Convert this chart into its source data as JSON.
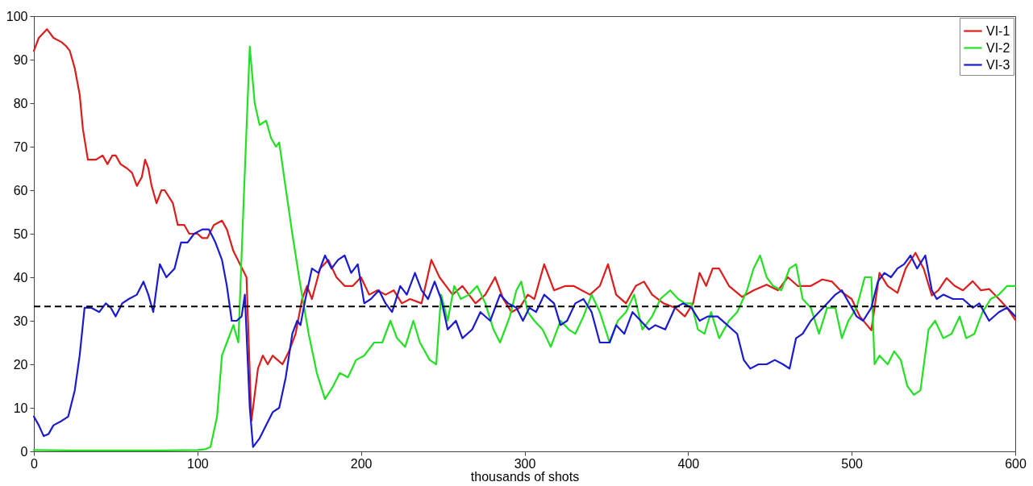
{
  "chart_data": {
    "type": "line",
    "xlabel": "thousands of shots",
    "xlim": [
      0,
      600
    ],
    "xticks": [
      0,
      100,
      200,
      300,
      400,
      500,
      600
    ],
    "ylim": [
      0,
      100
    ],
    "yticks": [
      0,
      10,
      20,
      30,
      40,
      50,
      60,
      70,
      80,
      90,
      100
    ],
    "grid": false,
    "legend": "top right",
    "line_style": "solid",
    "marker": "none",
    "ref_lines": [
      {
        "axis": "y",
        "value": 33.3,
        "color": "#000000",
        "line_style": "dashed"
      }
    ],
    "series": [
      {
        "name": "VI-1",
        "color": "#dd1c1c",
        "x": [
          0,
          3,
          8,
          12,
          17,
          20,
          22,
          25,
          28,
          30,
          33,
          38,
          42,
          45,
          48,
          50,
          53,
          57,
          60,
          63,
          66,
          68,
          70,
          72,
          75,
          78,
          80,
          85,
          88,
          92,
          95,
          100,
          103,
          106,
          110,
          115,
          118,
          122,
          126,
          130,
          133,
          137,
          140,
          143,
          146,
          149,
          152,
          156,
          160,
          164,
          167,
          170,
          175,
          180,
          185,
          190,
          195,
          200,
          205,
          210,
          215,
          220,
          225,
          230,
          237,
          243,
          248,
          252,
          256,
          262,
          266,
          270,
          276,
          282,
          287,
          292,
          297,
          302,
          306,
          312,
          318,
          325,
          330,
          335,
          340,
          346,
          351,
          356,
          362,
          368,
          373,
          378,
          385,
          392,
          398,
          403,
          407,
          411,
          415,
          419,
          425,
          433,
          440,
          448,
          455,
          461,
          467,
          475,
          482,
          488,
          494,
          500,
          505,
          512,
          517,
          522,
          528,
          533,
          539,
          544,
          549,
          553,
          558,
          563,
          568,
          574,
          579,
          584,
          590,
          595,
          600
        ],
        "values": [
          92,
          95,
          97,
          95,
          94,
          93,
          92,
          88,
          82,
          74,
          67,
          67,
          68,
          66,
          68,
          68,
          66,
          65,
          64,
          61,
          63,
          67,
          65,
          61,
          57,
          60,
          60,
          57,
          52,
          52,
          50,
          50,
          49,
          49,
          52,
          53,
          51,
          46,
          43,
          40,
          7,
          19,
          22,
          20,
          22,
          21,
          20,
          23,
          27,
          35,
          38,
          35,
          42,
          44,
          40,
          38,
          38,
          40,
          36,
          37,
          36,
          37,
          34,
          35,
          34,
          44,
          40,
          38,
          36,
          38,
          36,
          34,
          36,
          40,
          35,
          32,
          33,
          36,
          35,
          43,
          37,
          38,
          38,
          37,
          36,
          38,
          43,
          36,
          34,
          38,
          39,
          36,
          34,
          33,
          31,
          34,
          41,
          38,
          42,
          42,
          38,
          35.5,
          37,
          38.3,
          37,
          40,
          38,
          38,
          39.5,
          39,
          36.6,
          35,
          31,
          27.8,
          41,
          38,
          36.4,
          42,
          45.6,
          42,
          35.8,
          37,
          39.8,
          38,
          37,
          39.1,
          37,
          37.3,
          35,
          33,
          30.2
        ]
      },
      {
        "name": "VI-2",
        "color": "#22e022",
        "x": [
          0,
          20,
          40,
          60,
          80,
          100,
          105,
          108,
          112,
          115,
          118,
          122,
          125,
          128,
          132,
          135,
          138,
          142,
          145,
          148,
          150,
          153,
          158,
          163,
          168,
          173,
          178,
          183,
          187,
          192,
          197,
          202,
          208,
          213,
          218,
          222,
          227,
          232,
          236,
          242,
          246,
          249,
          253,
          257,
          261,
          266,
          271,
          276,
          281,
          285,
          291,
          295,
          298,
          302,
          306,
          311,
          316,
          322,
          327,
          331,
          336,
          341,
          346,
          352,
          357,
          362,
          367,
          372,
          378,
          383,
          389,
          394,
          398,
          402,
          406,
          410,
          414,
          419,
          425,
          430,
          436,
          440,
          444,
          448,
          452,
          457,
          462,
          466,
          470,
          475,
          480,
          485,
          490,
          494,
          498,
          503,
          508,
          512,
          514,
          517,
          522,
          526,
          530,
          534,
          538,
          542,
          547,
          551,
          556,
          561,
          566,
          570,
          575,
          580,
          585,
          590,
          595,
          600
        ],
        "values": [
          0.3,
          0.2,
          0.2,
          0.2,
          0.2,
          0.3,
          0.5,
          1,
          8,
          22,
          25,
          29,
          25,
          55,
          93,
          80,
          75,
          76,
          72,
          70,
          71,
          63,
          50,
          38,
          27,
          18,
          12,
          15,
          18,
          17,
          21,
          22,
          25,
          25,
          30,
          26,
          24,
          30,
          25,
          21,
          20,
          36,
          30,
          38,
          35,
          36,
          38,
          34,
          28,
          25,
          31,
          37,
          39,
          32,
          30,
          28,
          24,
          30,
          28,
          27,
          31,
          36,
          32,
          25,
          30,
          32,
          36,
          28,
          31,
          35,
          37,
          35,
          34,
          34,
          28,
          27,
          32,
          26,
          30,
          32,
          37,
          42,
          45,
          40,
          38,
          37,
          42,
          43,
          35,
          33,
          27,
          33,
          33,
          26,
          30,
          33,
          40,
          40,
          20,
          22,
          20,
          23,
          21,
          15,
          13,
          14,
          28,
          30,
          26,
          27,
          31,
          26,
          27,
          32,
          35,
          36,
          38,
          38
        ]
      },
      {
        "name": "VI-3",
        "color": "#1a1ad0",
        "x": [
          0,
          3,
          6,
          9,
          12,
          17,
          21,
          25,
          28,
          31,
          35,
          40,
          44,
          47,
          50,
          54,
          58,
          63,
          67,
          70,
          73,
          77,
          81,
          86,
          90,
          94,
          98,
          103,
          107,
          111,
          115,
          118,
          121,
          124,
          127,
          129,
          132,
          134,
          138,
          142,
          146,
          150,
          154,
          158,
          161,
          163,
          166,
          170,
          174,
          178,
          182,
          186,
          190,
          194,
          198,
          202,
          206,
          211,
          215,
          219,
          224,
          228,
          233,
          237,
          241,
          245,
          249,
          253,
          258,
          262,
          268,
          273,
          279,
          285,
          290,
          295,
          299,
          303,
          307,
          312,
          318,
          322,
          326,
          331,
          336,
          341,
          346,
          352,
          356,
          361,
          366,
          371,
          376,
          380,
          386,
          392,
          397,
          402,
          407,
          412,
          418,
          424,
          430,
          434,
          438,
          443,
          448,
          453,
          458,
          462,
          466,
          470,
          475,
          480,
          485,
          490,
          494,
          497,
          503,
          507,
          512,
          516,
          520,
          524,
          528,
          532,
          536,
          540,
          545,
          549,
          552,
          556,
          562,
          568,
          574,
          578,
          584,
          590,
          595,
          600
        ],
        "values": [
          8,
          6,
          3.5,
          4,
          6,
          7,
          8,
          14,
          22,
          33,
          33,
          32,
          34,
          33,
          31,
          34,
          35,
          36,
          39,
          36,
          32,
          43,
          40,
          42,
          48,
          48,
          50,
          51,
          51,
          48,
          44,
          38,
          30,
          30,
          31,
          36,
          10,
          1,
          3,
          6,
          9,
          10,
          17,
          27,
          30,
          29,
          35,
          42,
          41,
          45,
          42,
          44,
          45,
          41,
          43,
          34,
          35,
          37,
          34,
          32,
          38,
          36,
          41,
          37,
          35,
          39,
          35,
          28,
          30,
          26,
          28,
          32,
          30,
          36,
          34,
          33,
          30,
          33,
          32,
          36,
          34,
          29,
          30,
          34,
          35,
          32,
          25,
          25,
          29,
          27,
          32,
          30,
          28,
          29,
          28,
          33,
          34,
          33,
          30,
          31,
          31,
          29,
          27,
          21,
          19,
          20,
          20,
          21,
          20,
          19,
          26,
          27,
          30,
          32,
          34,
          36,
          37,
          35,
          31,
          30,
          33,
          39,
          41,
          40,
          42,
          43,
          45,
          42,
          45,
          37,
          35,
          36,
          35,
          35,
          33,
          34,
          30,
          32,
          33,
          31
        ]
      }
    ]
  }
}
